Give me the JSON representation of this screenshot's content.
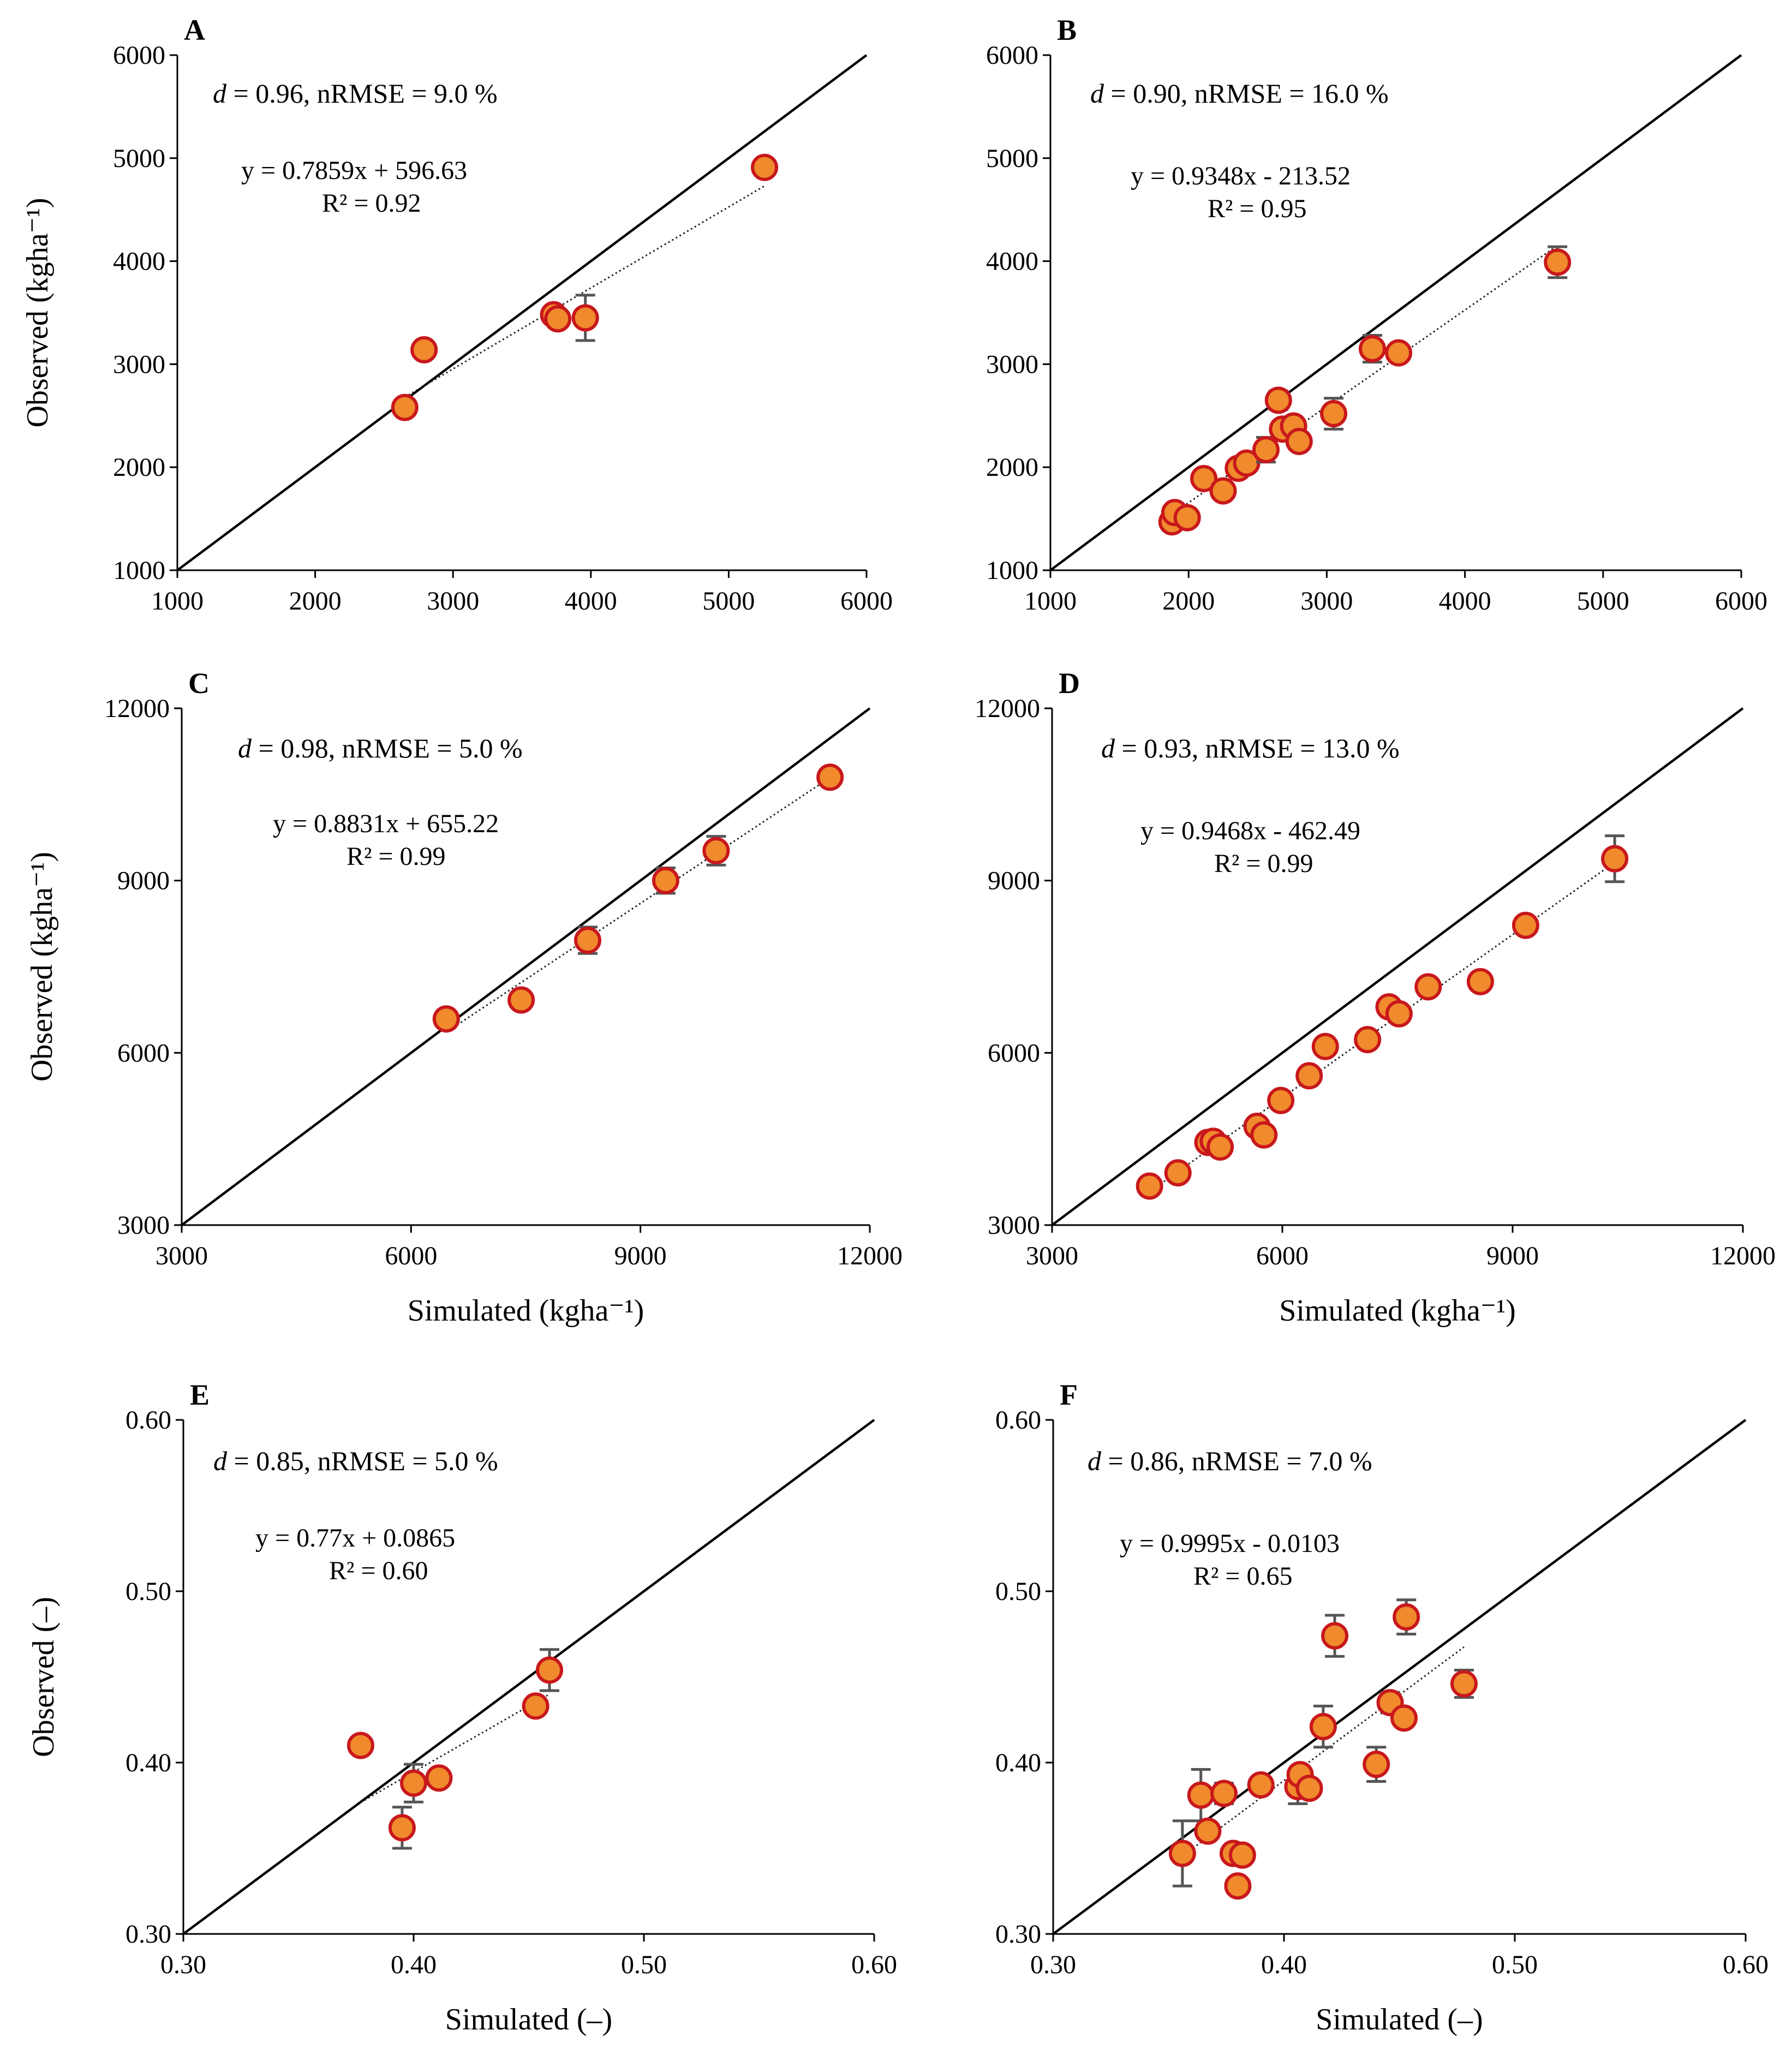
{
  "chart_data": [
    {
      "panel": "A",
      "type": "scatter",
      "xlim": [
        1000,
        6000
      ],
      "ylim": [
        1000,
        6000
      ],
      "xticks": [
        "1000",
        "2000",
        "3000",
        "4000",
        "5000",
        "6000"
      ],
      "yticks": [
        "1000",
        "2000",
        "3000",
        "4000",
        "5000",
        "6000"
      ],
      "xlabel": "",
      "ylabel": "Observed (kgha⁻¹)",
      "stat_d_symbol": "d",
      "stat_rest": " = 0.96, nRMSE = 9.0 %",
      "equation": "y = 0.7859x + 596.63",
      "r2": "R² = 0.92",
      "trend": {
        "slope": 0.7859,
        "intercept": 596.63,
        "x_range": [
          2650,
          5260
        ]
      },
      "points": [
        {
          "x": 2650,
          "y": 2580,
          "err": 0
        },
        {
          "x": 2790,
          "y": 3140,
          "err": 0
        },
        {
          "x": 3730,
          "y": 3480,
          "err": 0
        },
        {
          "x": 3760,
          "y": 3440,
          "err": 0
        },
        {
          "x": 3960,
          "y": 3450,
          "err": 220
        },
        {
          "x": 5260,
          "y": 4910,
          "err": 0
        }
      ]
    },
    {
      "panel": "B",
      "type": "scatter",
      "xlim": [
        1000,
        6000
      ],
      "ylim": [
        1000,
        6000
      ],
      "xticks": [
        "1000",
        "2000",
        "3000",
        "4000",
        "5000",
        "6000"
      ],
      "yticks": [
        "1000",
        "2000",
        "3000",
        "4000",
        "5000",
        "6000"
      ],
      "xlabel": "",
      "ylabel": "",
      "stat_d_symbol": "d",
      "stat_rest": " = 0.90, nRMSE = 16.0 %",
      "equation": "y = 0.9348x - 213.52",
      "r2": "R² = 0.95",
      "trend": {
        "slope": 0.9348,
        "intercept": -213.52,
        "x_range": [
          1880,
          4670
        ]
      },
      "points": [
        {
          "x": 1880,
          "y": 1470,
          "err": 0
        },
        {
          "x": 1900,
          "y": 1560,
          "err": 0
        },
        {
          "x": 1990,
          "y": 1510,
          "err": 0
        },
        {
          "x": 2110,
          "y": 1890,
          "err": 0
        },
        {
          "x": 2250,
          "y": 1770,
          "err": 0
        },
        {
          "x": 2360,
          "y": 1990,
          "err": 0
        },
        {
          "x": 2420,
          "y": 2040,
          "err": 0
        },
        {
          "x": 2560,
          "y": 2170,
          "err": 120
        },
        {
          "x": 2650,
          "y": 2650,
          "err": 90
        },
        {
          "x": 2680,
          "y": 2370,
          "err": 0
        },
        {
          "x": 2760,
          "y": 2400,
          "err": 0
        },
        {
          "x": 2800,
          "y": 2250,
          "err": 0
        },
        {
          "x": 3050,
          "y": 2520,
          "err": 150
        },
        {
          "x": 3330,
          "y": 3150,
          "err": 130
        },
        {
          "x": 3520,
          "y": 3110,
          "err": 0
        },
        {
          "x": 4670,
          "y": 3990,
          "err": 150
        }
      ]
    },
    {
      "panel": "C",
      "type": "scatter",
      "xlim": [
        3000,
        12000
      ],
      "ylim": [
        3000,
        12000
      ],
      "xticks": [
        "3000",
        "6000",
        "9000",
        "12000"
      ],
      "yticks": [
        "3000",
        "6000",
        "9000",
        "12000"
      ],
      "xlabel": "Simulated (kgha⁻¹)",
      "ylabel": "Observed (kgha⁻¹)",
      "stat_d_symbol": "d",
      "stat_rest": " = 0.98, nRMSE = 5.0 %",
      "equation": "y = 0.8831x + 655.22",
      "r2": "R² = 0.99",
      "trend": {
        "slope": 0.8831,
        "intercept": 655.22,
        "x_range": [
          6460,
          11480
        ]
      },
      "points": [
        {
          "x": 6460,
          "y": 6590,
          "err": 0
        },
        {
          "x": 7440,
          "y": 6920,
          "err": 0
        },
        {
          "x": 8310,
          "y": 7960,
          "err": 230
        },
        {
          "x": 9330,
          "y": 9000,
          "err": 220
        },
        {
          "x": 9990,
          "y": 9520,
          "err": 250
        },
        {
          "x": 11480,
          "y": 10800,
          "err": 0
        }
      ]
    },
    {
      "panel": "D",
      "type": "scatter",
      "xlim": [
        3000,
        12000
      ],
      "ylim": [
        3000,
        12000
      ],
      "xticks": [
        "3000",
        "6000",
        "9000",
        "12000"
      ],
      "yticks": [
        "3000",
        "6000",
        "9000",
        "12000"
      ],
      "xlabel": "Simulated (kgha⁻¹)",
      "ylabel": "",
      "stat_d_symbol": "d",
      "stat_rest": " = 0.93, nRMSE = 13.0 %",
      "equation": "y = 0.9468x - 462.49",
      "r2": "R² = 0.99",
      "trend": {
        "slope": 0.9468,
        "intercept": -462.49,
        "x_range": [
          4270,
          10330
        ]
      },
      "points": [
        {
          "x": 4270,
          "y": 3680,
          "err": 0
        },
        {
          "x": 4640,
          "y": 3910,
          "err": 0
        },
        {
          "x": 5030,
          "y": 4440,
          "err": 0
        },
        {
          "x": 5100,
          "y": 4460,
          "err": 0
        },
        {
          "x": 5190,
          "y": 4360,
          "err": 0
        },
        {
          "x": 5670,
          "y": 4720,
          "err": 0
        },
        {
          "x": 5760,
          "y": 4570,
          "err": 0
        },
        {
          "x": 5980,
          "y": 5170,
          "err": 0
        },
        {
          "x": 6350,
          "y": 5600,
          "err": 0
        },
        {
          "x": 6560,
          "y": 6110,
          "err": 0
        },
        {
          "x": 7110,
          "y": 6230,
          "err": 0
        },
        {
          "x": 7390,
          "y": 6800,
          "err": 0
        },
        {
          "x": 7520,
          "y": 6680,
          "err": 0
        },
        {
          "x": 7900,
          "y": 7150,
          "err": 0
        },
        {
          "x": 8580,
          "y": 7240,
          "err": 0
        },
        {
          "x": 9170,
          "y": 8220,
          "err": 0
        },
        {
          "x": 10330,
          "y": 9380,
          "err": 400
        }
      ]
    },
    {
      "panel": "E",
      "type": "scatter",
      "xlim": [
        0.3,
        0.6
      ],
      "ylim": [
        0.3,
        0.6
      ],
      "xticks": [
        "0.30",
        "0.40",
        "0.50",
        "0.60"
      ],
      "yticks": [
        "0.30",
        "0.40",
        "0.50",
        "0.60"
      ],
      "xlabel": "Simulated (–)",
      "ylabel": "Observed (–)",
      "stat_d_symbol": "d",
      "stat_rest": " = 0.85, nRMSE = 5.0 %",
      "equation": "y = 0.77x + 0.0865",
      "r2": "R² = 0.60",
      "trend": {
        "slope": 0.77,
        "intercept": 0.0865,
        "x_range": [
          0.377,
          0.459
        ]
      },
      "points": [
        {
          "x": 0.377,
          "y": 0.41,
          "err": 0
        },
        {
          "x": 0.395,
          "y": 0.362,
          "err": 0.012
        },
        {
          "x": 0.4,
          "y": 0.388,
          "err": 0.011
        },
        {
          "x": 0.411,
          "y": 0.391,
          "err": 0
        },
        {
          "x": 0.453,
          "y": 0.433,
          "err": 0
        },
        {
          "x": 0.459,
          "y": 0.454,
          "err": 0.012
        }
      ]
    },
    {
      "panel": "F",
      "type": "scatter",
      "xlim": [
        0.3,
        0.6
      ],
      "ylim": [
        0.3,
        0.6
      ],
      "xticks": [
        "0.30",
        "0.40",
        "0.50",
        "0.60"
      ],
      "yticks": [
        "0.30",
        "0.40",
        "0.50",
        "0.60"
      ],
      "xlabel": "Simulated (–)",
      "ylabel": "",
      "stat_d_symbol": "d",
      "stat_rest": " = 0.86, nRMSE = 7.0 %",
      "equation": "y = 0.9995x - 0.0103",
      "r2": "R² = 0.65",
      "trend": {
        "slope": 0.9995,
        "intercept": -0.0103,
        "x_range": [
          0.356,
          0.478
        ]
      },
      "points": [
        {
          "x": 0.356,
          "y": 0.347,
          "err": 0.019
        },
        {
          "x": 0.364,
          "y": 0.381,
          "err": 0.015
        },
        {
          "x": 0.367,
          "y": 0.36,
          "err": 0
        },
        {
          "x": 0.374,
          "y": 0.382,
          "err": 0.006
        },
        {
          "x": 0.378,
          "y": 0.347,
          "err": 0
        },
        {
          "x": 0.38,
          "y": 0.328,
          "err": 0
        },
        {
          "x": 0.382,
          "y": 0.346,
          "err": 0
        },
        {
          "x": 0.39,
          "y": 0.387,
          "err": 0
        },
        {
          "x": 0.406,
          "y": 0.386,
          "err": 0.01
        },
        {
          "x": 0.407,
          "y": 0.393,
          "err": 0
        },
        {
          "x": 0.411,
          "y": 0.385,
          "err": 0
        },
        {
          "x": 0.417,
          "y": 0.421,
          "err": 0.012
        },
        {
          "x": 0.422,
          "y": 0.474,
          "err": 0.012
        },
        {
          "x": 0.44,
          "y": 0.399,
          "err": 0.01
        },
        {
          "x": 0.446,
          "y": 0.435,
          "err": 0.006
        },
        {
          "x": 0.452,
          "y": 0.426,
          "err": 0
        },
        {
          "x": 0.453,
          "y": 0.485,
          "err": 0.01
        },
        {
          "x": 0.478,
          "y": 0.446,
          "err": 0.008
        }
      ]
    }
  ],
  "colors": {
    "marker_fill": "#f08a2c",
    "marker_edge": "#c8181c",
    "error_bar": "#555555",
    "axis": "#000000"
  }
}
